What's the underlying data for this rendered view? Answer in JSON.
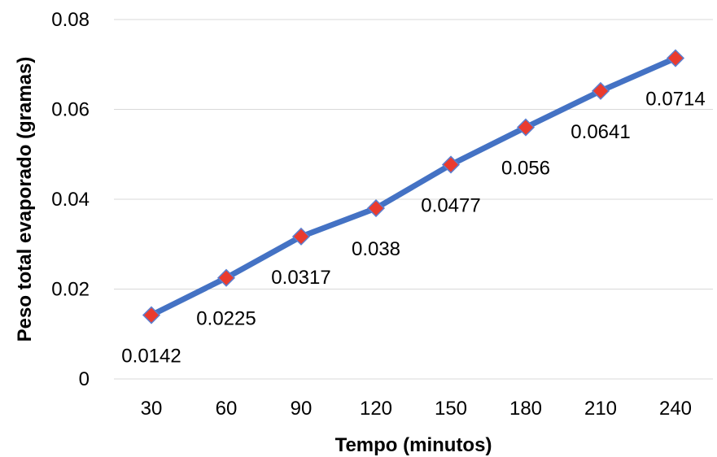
{
  "chart_data": {
    "type": "line",
    "title": "",
    "xlabel": "Tempo (minutos)",
    "ylabel": "Peso total evaporado (gramas)",
    "categories": [
      "30",
      "60",
      "90",
      "120",
      "150",
      "180",
      "210",
      "240"
    ],
    "series": [
      {
        "values": [
          0.0142,
          0.0225,
          0.0317,
          0.038,
          0.0477,
          0.056,
          0.0641,
          0.0714
        ],
        "data_labels": [
          "0.0142",
          "0.0225",
          "0.0317",
          "0.038",
          "0.0477",
          "0.056",
          "0.0641",
          "0.0714"
        ]
      }
    ],
    "ylim": [
      0,
      0.08
    ],
    "yticks": [
      "0",
      "0.02",
      "0.04",
      "0.06",
      "0.08"
    ],
    "grid": true,
    "legend": "none",
    "colors": {
      "line": "#4472c4",
      "marker": "#ea3b2e",
      "marker_edge": "#5b7fd0",
      "grid": "#d9d9d9"
    }
  }
}
